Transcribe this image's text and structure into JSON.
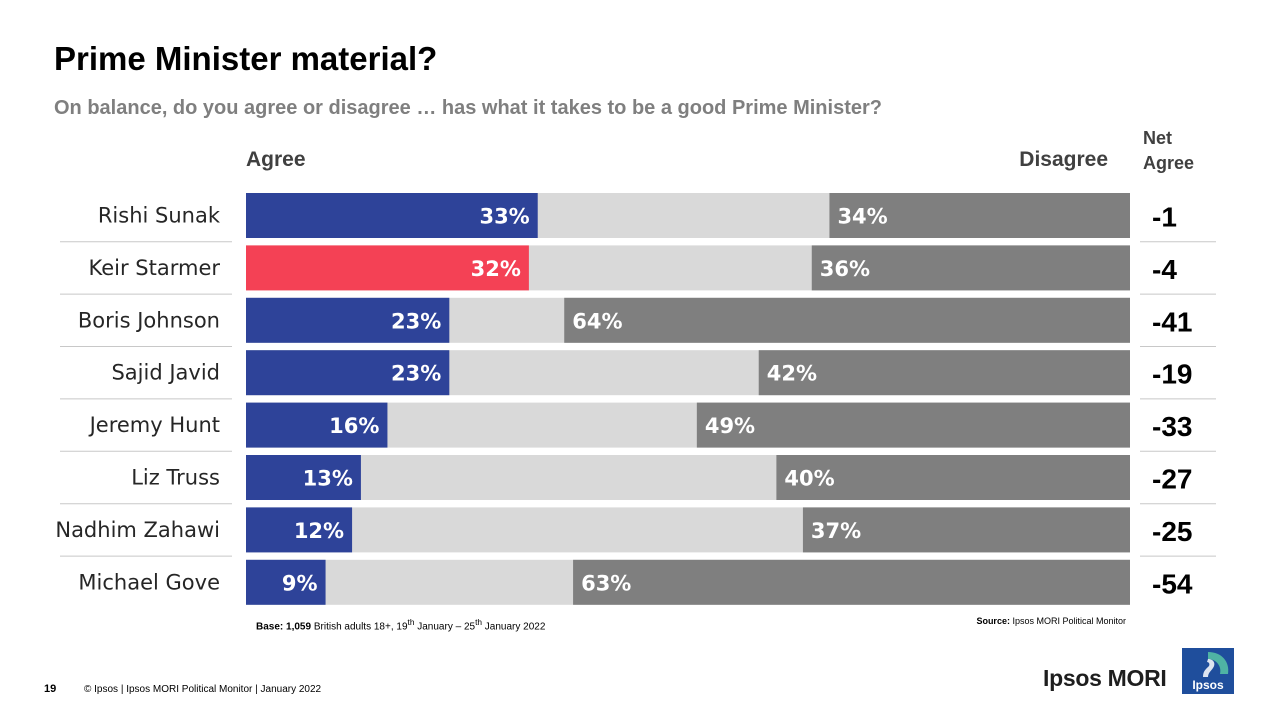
{
  "header": {
    "title": "Prime Minister material?",
    "subtitle": "On balance, do you agree or disagree … has what it takes to be a good Prime Minister?"
  },
  "columns": {
    "agree": "Agree",
    "disagree": "Disagree",
    "net_line1": "Net",
    "net_line2": "Agree"
  },
  "colors": {
    "agree_default": "#2e4399",
    "agree_highlight": "#f44155",
    "neutral": "#d9d9d9",
    "disagree": "#7f7f7f"
  },
  "chart_data": {
    "type": "bar",
    "orientation": "horizontal",
    "stacked": true,
    "categories": [
      "Rishi Sunak",
      "Keir Starmer",
      "Boris Johnson",
      "Sajid Javid",
      "Jeremy Hunt",
      "Liz Truss",
      "Nadhim Zahawi",
      "Michael Gove"
    ],
    "series": [
      {
        "name": "Agree",
        "values": [
          33,
          32,
          23,
          23,
          16,
          13,
          12,
          9
        ]
      },
      {
        "name": "Disagree",
        "values": [
          34,
          36,
          64,
          42,
          49,
          40,
          37,
          63
        ]
      }
    ],
    "net_agree": [
      -1,
      -4,
      -41,
      -19,
      -33,
      -27,
      -25,
      -54
    ],
    "labels": {
      "agree": [
        "33%",
        "32%",
        "23%",
        "23%",
        "16%",
        "13%",
        "12%",
        "9%"
      ],
      "disagree": [
        "34%",
        "36%",
        "64%",
        "42%",
        "49%",
        "40%",
        "37%",
        "63%"
      ],
      "net": [
        "-1",
        "-4",
        "-41",
        "-19",
        "-33",
        "-27",
        "-25",
        "-54"
      ]
    },
    "highlight_index": 1,
    "xlim": [
      0,
      100
    ]
  },
  "footnotes": {
    "base": "Base: 1,059 British adults 18+, 19th January – 25th January 2022",
    "source": "Source: Ipsos MORI Political Monitor"
  },
  "footer": {
    "page_number": "19",
    "text": "© Ipsos | Ipsos MORI Political Monitor | January 2022",
    "brand": "Ipsos MORI",
    "logo_text": "Ipsos"
  }
}
